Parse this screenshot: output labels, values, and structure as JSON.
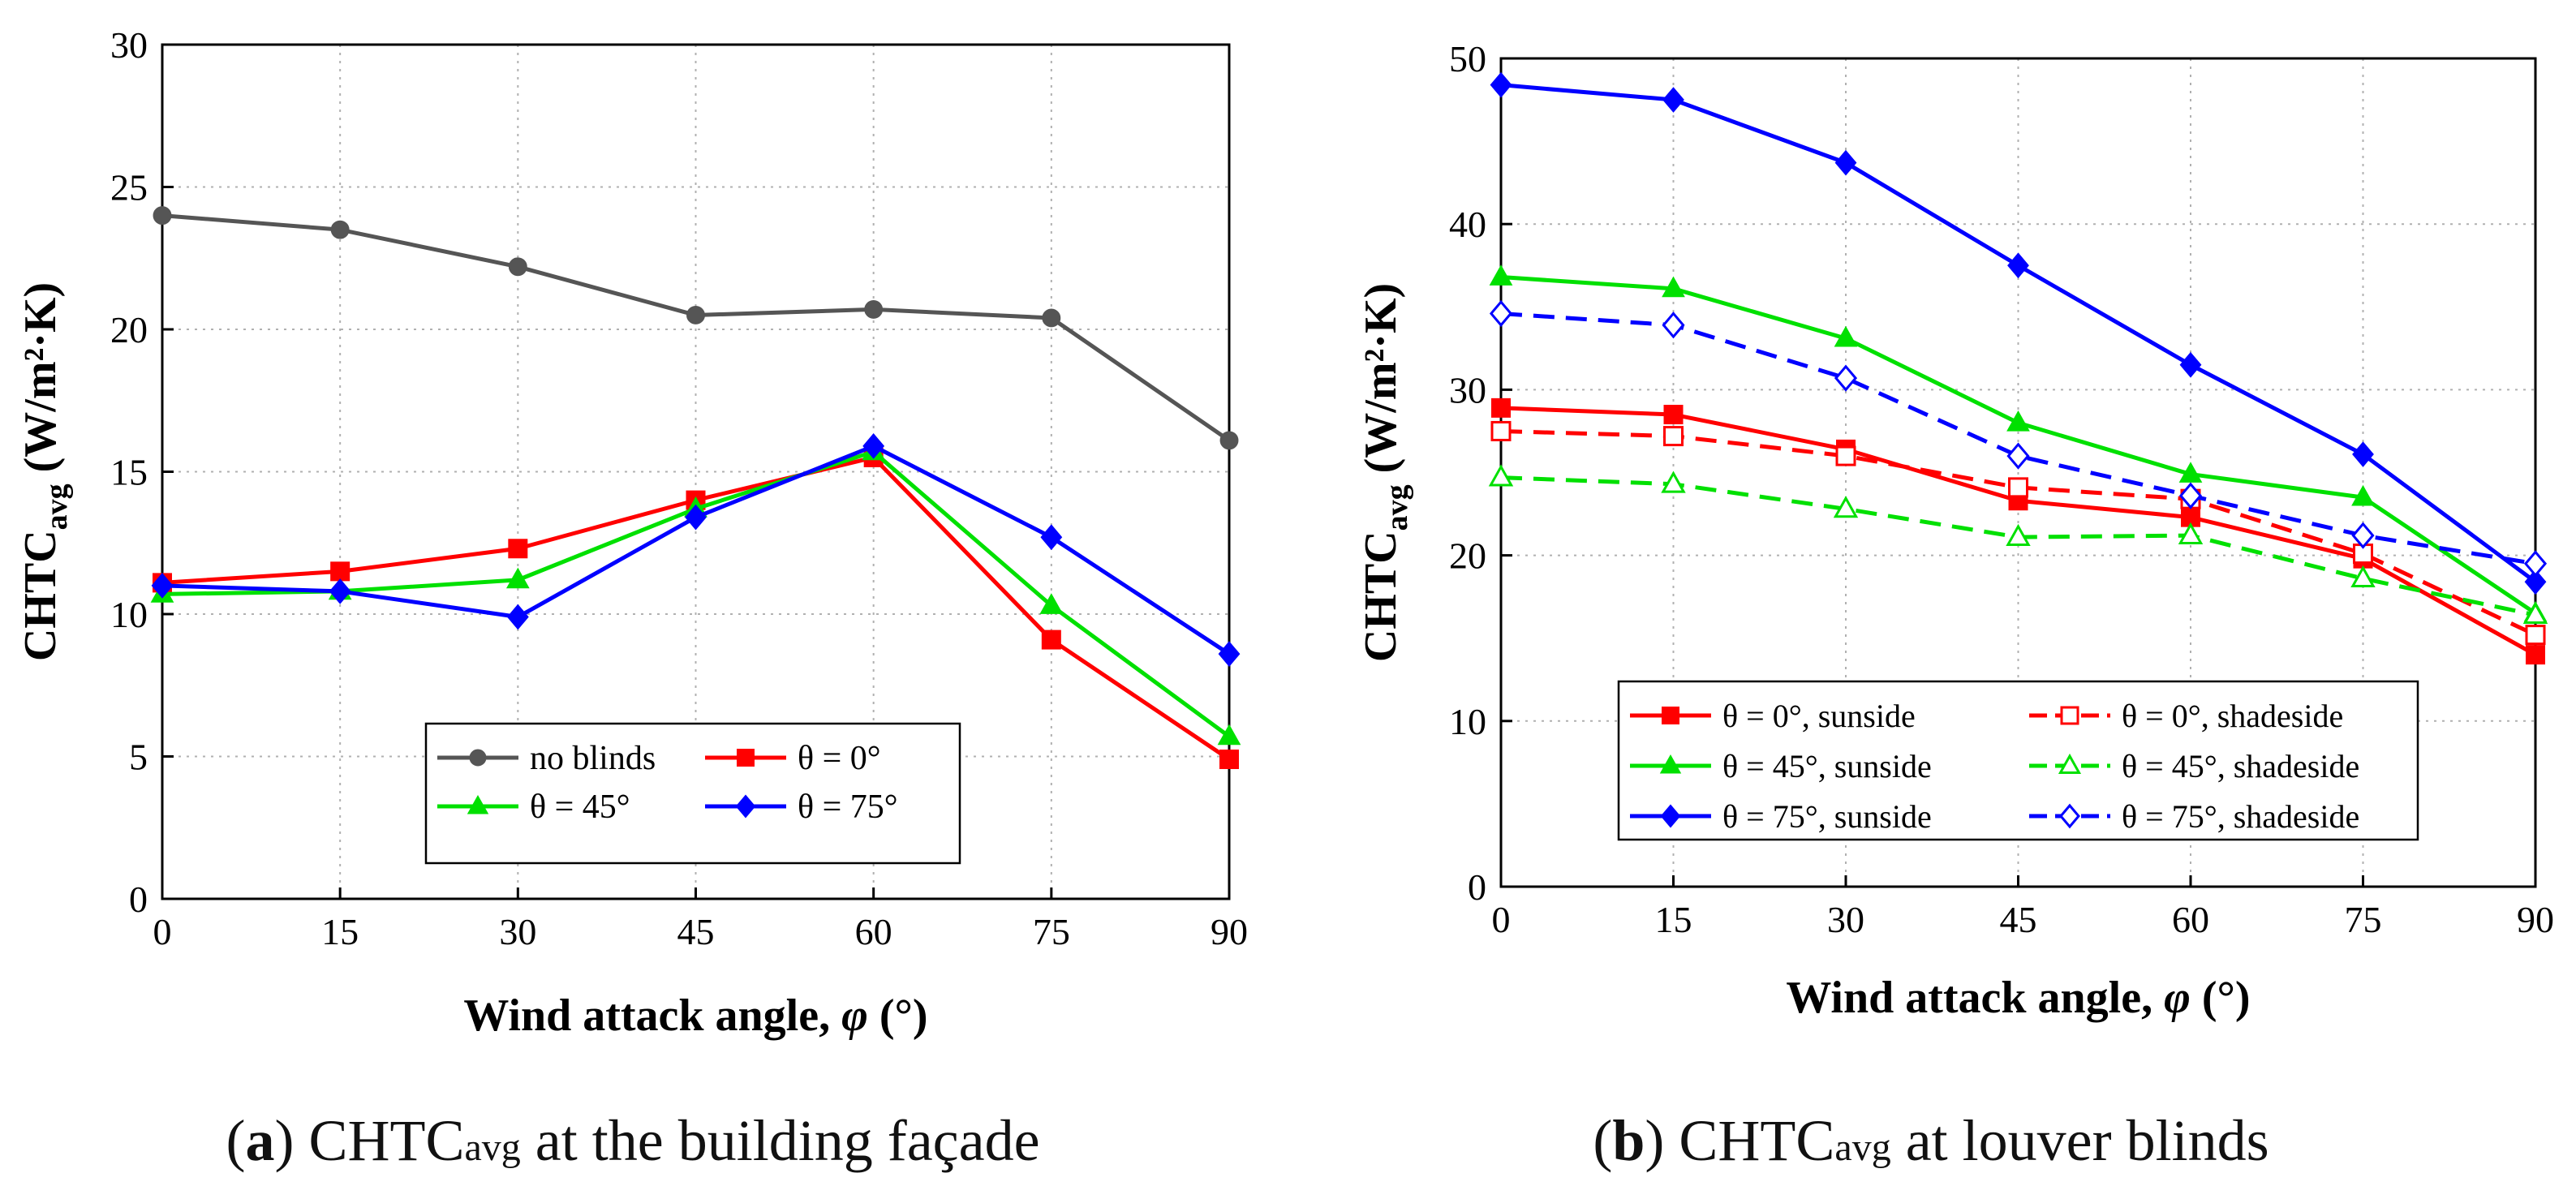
{
  "chart_data": [
    {
      "id": "a",
      "type": "line",
      "caption_letter": "a",
      "caption_prefix": "CHTC",
      "caption_sub": "avg",
      "caption_rest": " at the building façade",
      "ylabel_main": "CHTC",
      "ylabel_sub": "avg",
      "ylabel_unit": " (W/m²·K)",
      "xlabel_main": "Wind attack angle, ",
      "xlabel_symbol": "φ",
      "xlabel_unit": " (°)",
      "xlim": [
        0,
        90
      ],
      "ylim": [
        0,
        30
      ],
      "xticks": [
        0,
        15,
        30,
        45,
        60,
        75,
        90
      ],
      "yticks": [
        0,
        5,
        10,
        15,
        20,
        25,
        30
      ],
      "grid": true,
      "legend": {
        "placement": "bottom-center",
        "columns": 2
      },
      "x": [
        0,
        15,
        30,
        45,
        60,
        75,
        90
      ],
      "series": [
        {
          "name": "no blinds",
          "color": "#555555",
          "marker": "circle",
          "dash": false,
          "filled": true,
          "values": [
            24.0,
            23.5,
            22.2,
            20.5,
            20.7,
            20.4,
            16.1
          ]
        },
        {
          "name": "θ = 0°",
          "color": "#ff0000",
          "marker": "square",
          "dash": false,
          "filled": true,
          "values": [
            11.1,
            11.5,
            12.3,
            14.0,
            15.5,
            9.1,
            4.9
          ]
        },
        {
          "name": "θ = 45°",
          "color": "#00e000",
          "marker": "triangle",
          "dash": false,
          "filled": true,
          "values": [
            10.7,
            10.8,
            11.2,
            13.7,
            15.7,
            10.3,
            5.7
          ]
        },
        {
          "name": "θ = 75°",
          "color": "#0000ff",
          "marker": "diamond",
          "dash": false,
          "filled": true,
          "values": [
            11.0,
            10.8,
            9.9,
            13.4,
            15.9,
            12.7,
            8.6
          ]
        }
      ]
    },
    {
      "id": "b",
      "type": "line",
      "caption_letter": "b",
      "caption_prefix": "CHTC",
      "caption_sub": "avg",
      "caption_rest": " at louver blinds",
      "ylabel_main": "CHTC",
      "ylabel_sub": "avg",
      "ylabel_unit": " (W/m²·K)",
      "xlabel_main": "Wind attack angle, ",
      "xlabel_symbol": "φ",
      "xlabel_unit": " (°)",
      "xlim": [
        0,
        90
      ],
      "ylim": [
        0,
        50
      ],
      "xticks": [
        0,
        15,
        30,
        45,
        60,
        75,
        90
      ],
      "yticks": [
        0,
        10,
        20,
        30,
        40,
        50
      ],
      "grid": true,
      "legend": {
        "placement": "bottom-left",
        "columns": 2
      },
      "x": [
        0,
        15,
        30,
        45,
        60,
        75,
        90
      ],
      "series": [
        {
          "name": "θ = 0°, sunside",
          "color": "#ff0000",
          "marker": "square",
          "dash": false,
          "filled": true,
          "values": [
            28.9,
            28.5,
            26.4,
            23.3,
            22.3,
            19.8,
            14.0
          ]
        },
        {
          "name": "θ = 0°, shadeside",
          "color": "#ff0000",
          "marker": "square",
          "dash": true,
          "filled": false,
          "values": [
            27.5,
            27.2,
            26.0,
            24.1,
            23.4,
            20.1,
            15.2
          ]
        },
        {
          "name": "θ = 45°, sunside",
          "color": "#00e000",
          "marker": "triangle",
          "dash": false,
          "filled": true,
          "values": [
            36.8,
            36.1,
            33.1,
            28.0,
            24.9,
            23.5,
            16.5
          ]
        },
        {
          "name": "θ = 45°, shadeside",
          "color": "#00e000",
          "marker": "triangle",
          "dash": true,
          "filled": false,
          "values": [
            24.7,
            24.3,
            22.8,
            21.1,
            21.2,
            18.6,
            16.4
          ]
        },
        {
          "name": "θ = 75°, sunside",
          "color": "#0000ff",
          "marker": "diamond",
          "dash": false,
          "filled": true,
          "values": [
            48.4,
            47.5,
            43.7,
            37.5,
            31.5,
            26.1,
            18.4
          ]
        },
        {
          "name": "θ = 75°, shadeside",
          "color": "#0000ff",
          "marker": "diamond",
          "dash": true,
          "filled": false,
          "values": [
            34.6,
            33.9,
            30.7,
            26.0,
            23.6,
            21.2,
            19.5
          ]
        }
      ]
    }
  ]
}
